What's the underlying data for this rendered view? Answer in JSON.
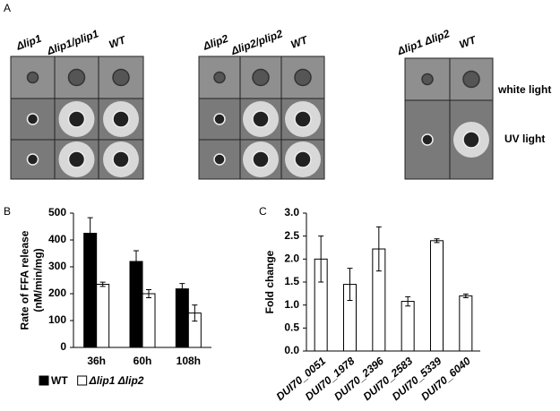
{
  "panel_a": {
    "label": "A",
    "groups": [
      [
        "Δlip1",
        "Δlip1/plip1",
        "WT"
      ],
      [
        "Δlip2",
        "Δlip2/plip2",
        "WT"
      ],
      [
        "Δlip1 Δlip2",
        "WT"
      ]
    ],
    "rows": [
      "white light",
      "UV light"
    ]
  },
  "chart_data": [
    {
      "type": "bar",
      "panel_label": "B",
      "ylabel": [
        "Rate of FFA release",
        "(nM/min/mg)"
      ],
      "categories": [
        "36h",
        "60h",
        "108h"
      ],
      "series": [
        {
          "name": "WT",
          "color": "#000000",
          "values": [
            425,
            320,
            218
          ],
          "errors": [
            58,
            40,
            20
          ]
        },
        {
          "name": "Δlip1 Δlip2",
          "color": "#ffffff",
          "values": [
            235,
            200,
            128
          ],
          "errors": [
            8,
            15,
            30
          ]
        }
      ],
      "ylim": [
        0,
        500
      ],
      "yticks": [
        0,
        100,
        200,
        300,
        400,
        500
      ]
    },
    {
      "type": "bar",
      "panel_label": "C",
      "ylabel": [
        "Fold change"
      ],
      "categories": [
        "DUI70_0051",
        "DUI70_1978",
        "DUI70_2396",
        "DUI70_2583",
        "DUI70_5339",
        "DUI70_6040"
      ],
      "color": "#ffffff",
      "values": [
        2.0,
        1.45,
        2.22,
        1.08,
        2.4,
        1.2
      ],
      "errors": [
        0.5,
        0.35,
        0.48,
        0.1,
        0.04,
        0.04
      ],
      "ylim": [
        0,
        3
      ],
      "yticks": [
        {
          "value": 0,
          "label": "0.0"
        },
        0.5,
        {
          "value": 1,
          "label": "1.0"
        },
        1.5,
        {
          "value": 2,
          "label": "2.0"
        },
        2.5,
        {
          "value": 3,
          "label": "3.0"
        }
      ]
    }
  ]
}
